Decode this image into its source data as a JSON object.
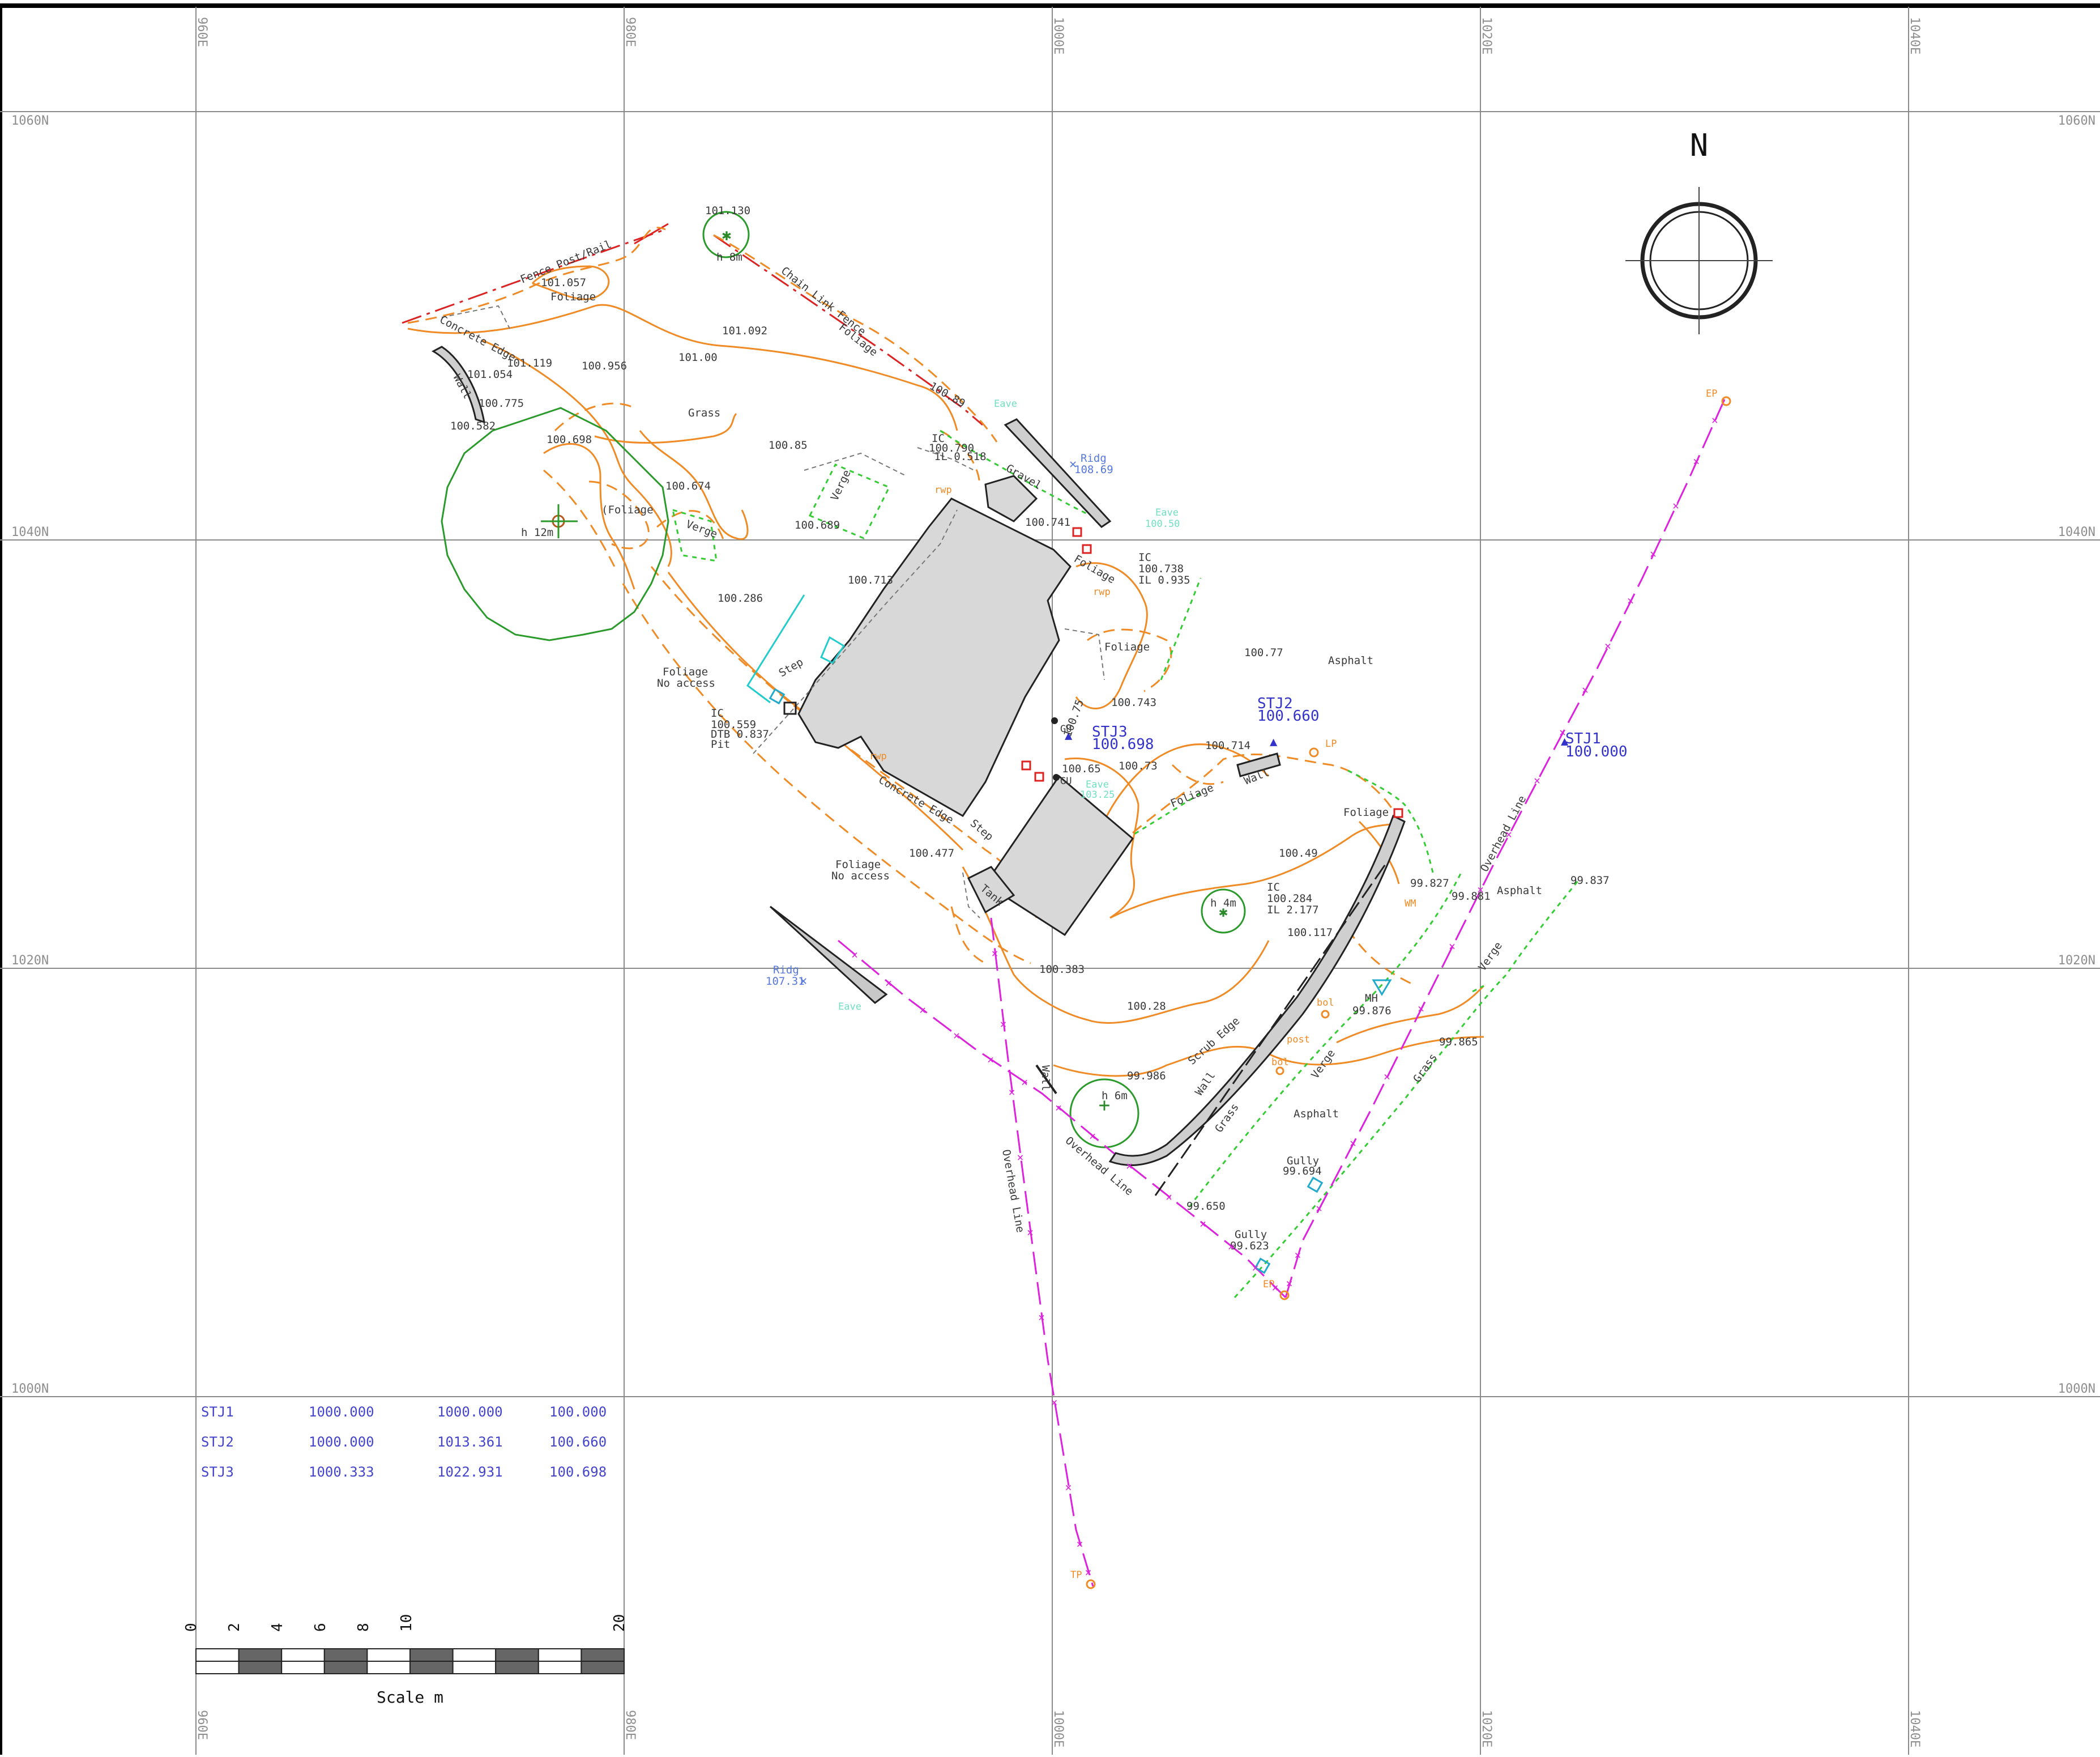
{
  "grid": {
    "eastings": [
      "960E",
      "980E",
      "1000E",
      "1020E",
      "1040E"
    ],
    "northings": [
      "1060N",
      "1040N",
      "1020N",
      "1000N"
    ]
  },
  "north_arrow": {
    "label": "N"
  },
  "stations": [
    {
      "id": "STJ1",
      "height": "100.000"
    },
    {
      "id": "STJ2",
      "height": "100.660"
    },
    {
      "id": "STJ3",
      "height": "100.698"
    }
  ],
  "control_table": [
    {
      "station": "STJ1",
      "easting": "1000.000",
      "northing": "1000.000",
      "height": "100.000"
    },
    {
      "station": "STJ2",
      "easting": "1000.000",
      "northing": "1013.361",
      "height": "100.660"
    },
    {
      "station": "STJ3",
      "easting": "1000.333",
      "northing": "1022.931",
      "height": "100.698"
    }
  ],
  "scale_bar": {
    "ticks": [
      "0",
      "2",
      "4",
      "6",
      "8",
      "10",
      "20"
    ],
    "title": "Scale m"
  },
  "labels": {
    "fence_post_rail": "Fence Post/Rail",
    "chain_link_fence": "Chain Link Fence",
    "concrete_edge_1": "Concrete Edge",
    "concrete_edge_2": "Concrete Edge",
    "wall_1": "Wall",
    "wall_2": "Wall",
    "wall_3": "Wall",
    "wall_4": "Wall",
    "grass_1": "Grass",
    "grass_2": "Grass",
    "grass_3": "Grass",
    "foliage_1": "Foliage",
    "foliage_2": "Foliage",
    "foliage_3": "(Foliage",
    "foliage_4": "Foliage",
    "foliage_5": "Foliage",
    "foliage_6": "Foliage",
    "foliage_7": "Foliage",
    "foliage_na_1": "Foliage",
    "no_access_1": "No access",
    "foliage_na_2": "Foliage",
    "no_access_2": "No access",
    "verge_1": "Verge",
    "verge_2": "Verge",
    "verge_3": "Verge",
    "verge_4": "Verge",
    "gravel": "Gravel",
    "step_1": "Step",
    "step_2": "Step",
    "tank": "Tank",
    "asphalt_1": "Asphalt",
    "asphalt_2": "Asphalt",
    "asphalt_3": "Asphalt",
    "scrub_edge": "Scrub Edge",
    "overhead_line_1": "Overhead Line",
    "overhead_line_2": "Overhead Line",
    "overhead_line_3": "Overhead Line",
    "ridg_1": "Ridg",
    "ridg_1_val": "108.69",
    "ridg_2": "Ridg",
    "ridg_2_val": "107.31",
    "eave_1": "Eave",
    "eave_2": "Eave",
    "eave_2_val": "100.50",
    "eave_3": "Eave",
    "eave_3_val": "103.25",
    "eave_4": "Eave",
    "tree_1": "h 8m",
    "tree_2": "h 12m",
    "tree_3": "h 4m",
    "tree_4": "h 6m",
    "ic_1": "IC",
    "ic_1_a": "100.790",
    "ic_1_b": "IL 0.518",
    "ic_2": "IC",
    "ic_2_a": "100.738",
    "ic_2_b": "IL 0.935",
    "ic_3": "IC",
    "ic_3_a": "100.559",
    "ic_3_b": "DTB 0.837",
    "ic_3_c": "Pit",
    "ic_4": "IC",
    "ic_4_a": "100.284",
    "ic_4_b": "IL 2.177",
    "mh": "MH",
    "mh_val": "99.876",
    "gully_1": "Gully",
    "gully_1_val": "99.694",
    "gully_2": "Gully",
    "gully_2_val": "99.623",
    "post": "post",
    "bol_1": "bol",
    "bol_2": "bol",
    "ep_1": "EP",
    "ep_2": "EP",
    "tp": "TP",
    "lp": "LP",
    "wm": "WM",
    "rwp_1": "rwp",
    "rwp_2": "rwp",
    "rwp_3": "rwp",
    "gu_1": "GU",
    "gu_2": "GU"
  },
  "spot_levels": [
    "101.130",
    "101.057",
    "101.092",
    "101.119",
    "101.054",
    "100.956",
    "101.00",
    "100.775",
    "100.582",
    "100.698",
    "100.85",
    "100.674",
    "100.689",
    "100.713",
    "100.286",
    "100.741",
    "100.77",
    "100.743",
    "100.75",
    "100.714",
    "100.65",
    "100.73",
    "100.49",
    "100.477",
    "100.383",
    "100.28",
    "100.117",
    "99.986",
    "99.827",
    "99.881",
    "99.837",
    "99.865",
    "99.650",
    "100.89"
  ]
}
